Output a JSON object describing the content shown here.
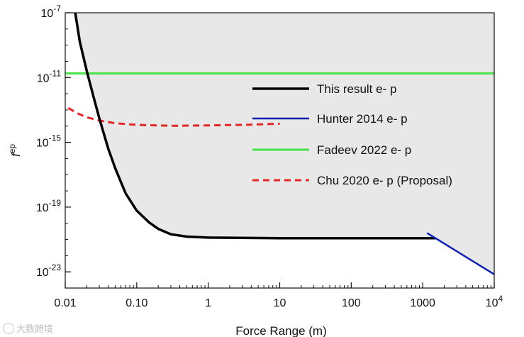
{
  "chart_data": {
    "type": "line",
    "xlabel": "Force Range (m)",
    "ylabel": "f",
    "ylabel_sup": "ep",
    "x_scale": "log",
    "y_scale": "log",
    "xlim": [
      0.01,
      10000
    ],
    "ylim": [
      1e-24,
      1e-07
    ],
    "x_ticks": [
      {
        "value": 0.01,
        "label": "0.01"
      },
      {
        "value": 0.1,
        "label": "0.10"
      },
      {
        "value": 1,
        "label": "1"
      },
      {
        "value": 10,
        "label": "10"
      },
      {
        "value": 100,
        "label": "100"
      },
      {
        "value": 1000,
        "label": "1000"
      },
      {
        "value": 10000,
        "label": "10",
        "sup": "4"
      }
    ],
    "y_ticks": [
      {
        "value": 1e-07,
        "label": "10",
        "sup": "-7"
      },
      {
        "value": 1e-11,
        "label": "10",
        "sup": "-11"
      },
      {
        "value": 1e-15,
        "label": "10",
        "sup": "-15"
      },
      {
        "value": 1e-19,
        "label": "10",
        "sup": "-19"
      },
      {
        "value": 1e-23,
        "label": "10",
        "sup": "-23"
      }
    ],
    "grid": false,
    "legend": {
      "placement": "center-right"
    },
    "excluded_region": {
      "color": "#e8e8e8",
      "bounded_by": "This result e- p"
    },
    "series": [
      {
        "name": "This result e- p",
        "color": "#000000",
        "dash": "solid",
        "width": 3.5,
        "points": [
          [
            0.0138,
            1e-07
          ],
          [
            0.016,
            1.6e-09
          ],
          [
            0.02,
            2.5e-11
          ],
          [
            0.025,
            6e-13
          ],
          [
            0.03,
            3e-14
          ],
          [
            0.04,
            4e-16
          ],
          [
            0.05,
            2.5e-17
          ],
          [
            0.07,
            7e-19
          ],
          [
            0.1,
            6e-20
          ],
          [
            0.15,
            1.1e-20
          ],
          [
            0.2,
            4.5e-21
          ],
          [
            0.3,
            2.1e-21
          ],
          [
            0.5,
            1.5e-21
          ],
          [
            1,
            1.3e-21
          ],
          [
            10,
            1.2e-21
          ],
          [
            100,
            1.2e-21
          ],
          [
            1500,
            1.2e-21
          ]
        ]
      },
      {
        "name": "Hunter 2014 e- p",
        "color": "#1020b0",
        "dash": "solid",
        "width": 2.5,
        "points": [
          [
            1150,
            2.5e-21
          ],
          [
            10000,
            7e-24
          ]
        ]
      },
      {
        "name": "Fadeev 2022 e- p",
        "color": "#4ae24a",
        "dash": "solid",
        "width": 3,
        "points": [
          [
            0.01,
            1.8e-11
          ],
          [
            10000,
            1.8e-11
          ]
        ]
      },
      {
        "name": "Chu 2020 e- p (Proposal)",
        "color": "#e02828",
        "dash": "dashed",
        "width": 3,
        "points": [
          [
            0.011,
            1.3e-13
          ],
          [
            0.015,
            6e-14
          ],
          [
            0.02,
            3.5e-14
          ],
          [
            0.03,
            2.2e-14
          ],
          [
            0.05,
            1.5e-14
          ],
          [
            0.1,
            1.2e-14
          ],
          [
            0.3,
            1.05e-14
          ],
          [
            1,
            1.1e-14
          ],
          [
            3,
            1.2e-14
          ],
          [
            10,
            1.4e-14
          ]
        ]
      }
    ]
  },
  "watermark": {
    "text": "大数跨境"
  }
}
